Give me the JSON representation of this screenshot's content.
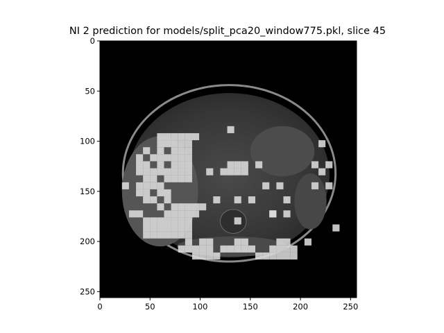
{
  "title": "NI 2 prediction for models/split_pca20_window775.pkl, slice 45",
  "image_extent": [
    0,
    256
  ],
  "x_ticks": [
    {
      "value": 0,
      "label": "0"
    },
    {
      "value": 50,
      "label": "50"
    },
    {
      "value": 100,
      "label": "100"
    },
    {
      "value": 150,
      "label": "150"
    },
    {
      "value": 200,
      "label": "200"
    },
    {
      "value": 250,
      "label": "250"
    }
  ],
  "y_ticks": [
    {
      "value": 0,
      "label": "0"
    },
    {
      "value": 50,
      "label": "50"
    },
    {
      "value": 100,
      "label": "100"
    },
    {
      "value": 150,
      "label": "150"
    },
    {
      "value": 200,
      "label": "200"
    },
    {
      "value": 250,
      "label": "250"
    }
  ],
  "colors": {
    "background": "#000000",
    "body_ring": "#8a8a8a",
    "tissue": "#3c3c3c",
    "prediction_patch": "#dcdcdc"
  },
  "prediction_patch_size": 7,
  "prediction_patches": [
    [
      57,
      92
    ],
    [
      64,
      92
    ],
    [
      71,
      92
    ],
    [
      78,
      92
    ],
    [
      85,
      92
    ],
    [
      92,
      92
    ],
    [
      57,
      99
    ],
    [
      64,
      99
    ],
    [
      71,
      99
    ],
    [
      78,
      99
    ],
    [
      85,
      99
    ],
    [
      43,
      106
    ],
    [
      57,
      106
    ],
    [
      71,
      106
    ],
    [
      78,
      106
    ],
    [
      85,
      106
    ],
    [
      36,
      113
    ],
    [
      50,
      113
    ],
    [
      57,
      113
    ],
    [
      64,
      113
    ],
    [
      71,
      113
    ],
    [
      78,
      113
    ],
    [
      85,
      113
    ],
    [
      36,
      120
    ],
    [
      43,
      120
    ],
    [
      57,
      120
    ],
    [
      71,
      120
    ],
    [
      78,
      120
    ],
    [
      85,
      120
    ],
    [
      36,
      127
    ],
    [
      43,
      127
    ],
    [
      50,
      127
    ],
    [
      57,
      127
    ],
    [
      64,
      127
    ],
    [
      71,
      127
    ],
    [
      78,
      127
    ],
    [
      85,
      127
    ],
    [
      43,
      134
    ],
    [
      50,
      134
    ],
    [
      64,
      134
    ],
    [
      71,
      134
    ],
    [
      78,
      134
    ],
    [
      85,
      134
    ],
    [
      36,
      141
    ],
    [
      43,
      141
    ],
    [
      50,
      141
    ],
    [
      57,
      141
    ],
    [
      36,
      148
    ],
    [
      43,
      148
    ],
    [
      57,
      148
    ],
    [
      64,
      148
    ],
    [
      43,
      155
    ],
    [
      50,
      155
    ],
    [
      64,
      155
    ],
    [
      57,
      162
    ],
    [
      71,
      162
    ],
    [
      78,
      162
    ],
    [
      85,
      162
    ],
    [
      92,
      162
    ],
    [
      99,
      162
    ],
    [
      29,
      169
    ],
    [
      36,
      169
    ],
    [
      64,
      169
    ],
    [
      71,
      169
    ],
    [
      78,
      169
    ],
    [
      85,
      169
    ],
    [
      92,
      169
    ],
    [
      43,
      176
    ],
    [
      50,
      176
    ],
    [
      57,
      176
    ],
    [
      64,
      176
    ],
    [
      71,
      176
    ],
    [
      78,
      176
    ],
    [
      85,
      176
    ],
    [
      43,
      183
    ],
    [
      50,
      183
    ],
    [
      57,
      183
    ],
    [
      64,
      183
    ],
    [
      71,
      183
    ],
    [
      78,
      183
    ],
    [
      85,
      183
    ],
    [
      43,
      190
    ],
    [
      50,
      190
    ],
    [
      57,
      190
    ],
    [
      64,
      190
    ],
    [
      71,
      190
    ],
    [
      78,
      190
    ],
    [
      85,
      190
    ],
    [
      85,
      197
    ],
    [
      99,
      197
    ],
    [
      106,
      197
    ],
    [
      134,
      197
    ],
    [
      141,
      197
    ],
    [
      176,
      197
    ],
    [
      183,
      197
    ],
    [
      78,
      204
    ],
    [
      85,
      204
    ],
    [
      92,
      204
    ],
    [
      99,
      204
    ],
    [
      106,
      204
    ],
    [
      120,
      204
    ],
    [
      127,
      204
    ],
    [
      134,
      204
    ],
    [
      141,
      204
    ],
    [
      148,
      204
    ],
    [
      169,
      204
    ],
    [
      176,
      204
    ],
    [
      183,
      204
    ],
    [
      190,
      204
    ],
    [
      92,
      211
    ],
    [
      99,
      211
    ],
    [
      106,
      211
    ],
    [
      113,
      211
    ],
    [
      155,
      211
    ],
    [
      162,
      211
    ],
    [
      169,
      211
    ],
    [
      176,
      211
    ],
    [
      183,
      211
    ],
    [
      190,
      211
    ],
    [
      127,
      120
    ],
    [
      134,
      120
    ],
    [
      141,
      120
    ],
    [
      120,
      127
    ],
    [
      127,
      127
    ],
    [
      134,
      127
    ],
    [
      141,
      127
    ],
    [
      106,
      127
    ],
    [
      127,
      85
    ],
    [
      22,
      141
    ],
    [
      113,
      155
    ],
    [
      134,
      155
    ],
    [
      162,
      141
    ],
    [
      176,
      141
    ],
    [
      169,
      169
    ],
    [
      183,
      169
    ],
    [
      183,
      155
    ],
    [
      134,
      176
    ],
    [
      204,
      197
    ],
    [
      218,
      99
    ],
    [
      211,
      120
    ],
    [
      225,
      120
    ],
    [
      218,
      127
    ],
    [
      211,
      141
    ],
    [
      225,
      141
    ],
    [
      232,
      183
    ],
    [
      155,
      120
    ],
    [
      169,
      169
    ],
    [
      148,
      155
    ]
  ]
}
